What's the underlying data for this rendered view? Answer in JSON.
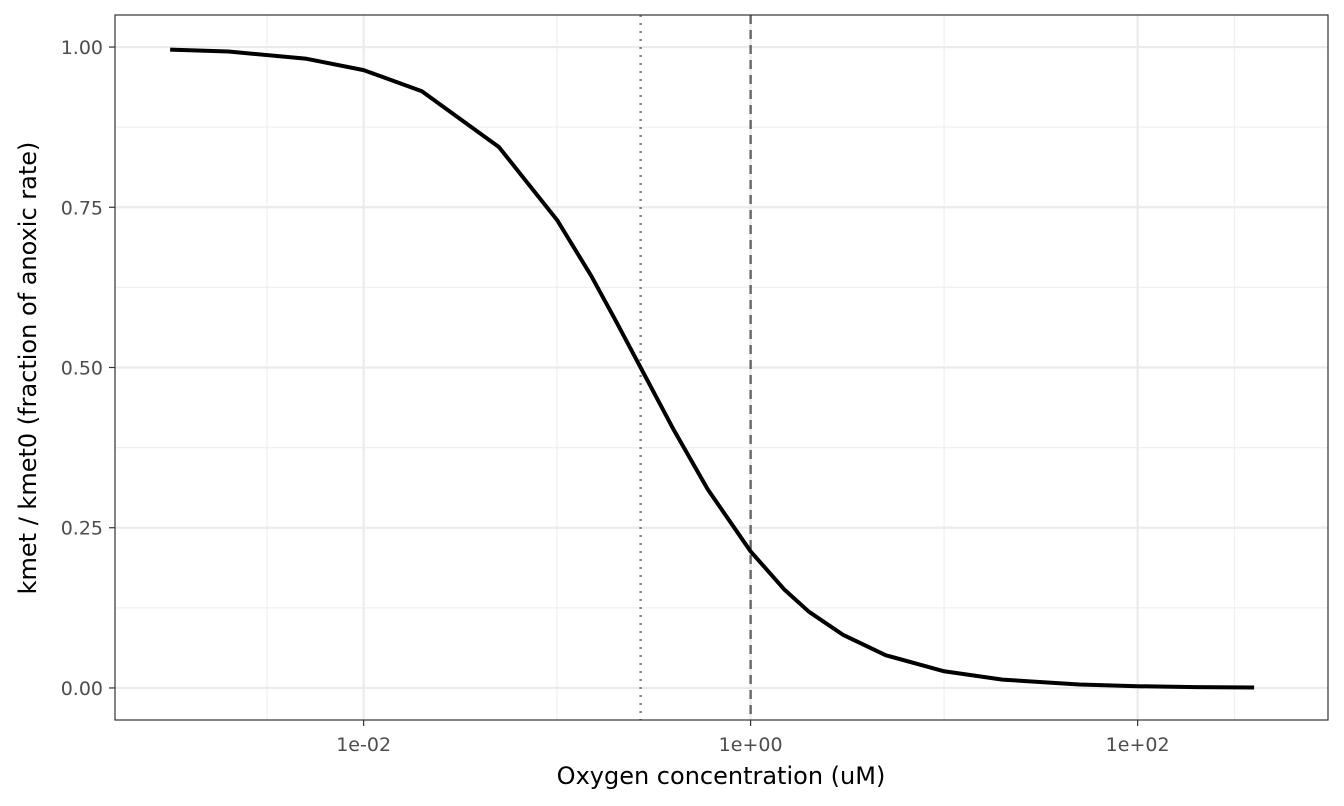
{
  "chart_data": {
    "type": "line",
    "title": "",
    "xlabel": "Oxygen concentration (uM)",
    "ylabel": "kmet / kmet0 (fraction of anoxic rate)",
    "x_scale": "log10",
    "xlim": [
      0.001,
      500
    ],
    "ylim": [
      0,
      1
    ],
    "grid": true,
    "legend": "none",
    "x_ticks": [
      {
        "value": 0.01,
        "label": "1e-02"
      },
      {
        "value": 1,
        "label": "1e+00"
      },
      {
        "value": 100,
        "label": "1e+02"
      }
    ],
    "y_ticks": [
      {
        "value": 0,
        "label": "0.00"
      },
      {
        "value": 0.25,
        "label": "0.25"
      },
      {
        "value": 0.5,
        "label": "0.50"
      },
      {
        "value": 0.75,
        "label": "0.75"
      },
      {
        "value": 1,
        "label": "1.00"
      }
    ],
    "series": [
      {
        "x": [
          0.001,
          0.002,
          0.005,
          0.01,
          0.02,
          0.05,
          0.1,
          0.15,
          0.2,
          0.27,
          0.4,
          0.6,
          1,
          1.5,
          2,
          3,
          5,
          10,
          20,
          50,
          100,
          200,
          400
        ],
        "values": [
          0.996,
          0.993,
          0.982,
          0.964,
          0.931,
          0.844,
          0.73,
          0.643,
          0.574,
          0.5,
          0.403,
          0.31,
          0.213,
          0.153,
          0.119,
          0.083,
          0.051,
          0.026,
          0.013,
          0.0054,
          0.0027,
          0.0013,
          0.0007
        ],
        "color": "#000000"
      }
    ],
    "reference_lines": [
      {
        "x": 0.27,
        "style": "dotted",
        "color": "#7f7f7f"
      },
      {
        "x": 1,
        "style": "dashed",
        "color": "#666666"
      }
    ]
  }
}
